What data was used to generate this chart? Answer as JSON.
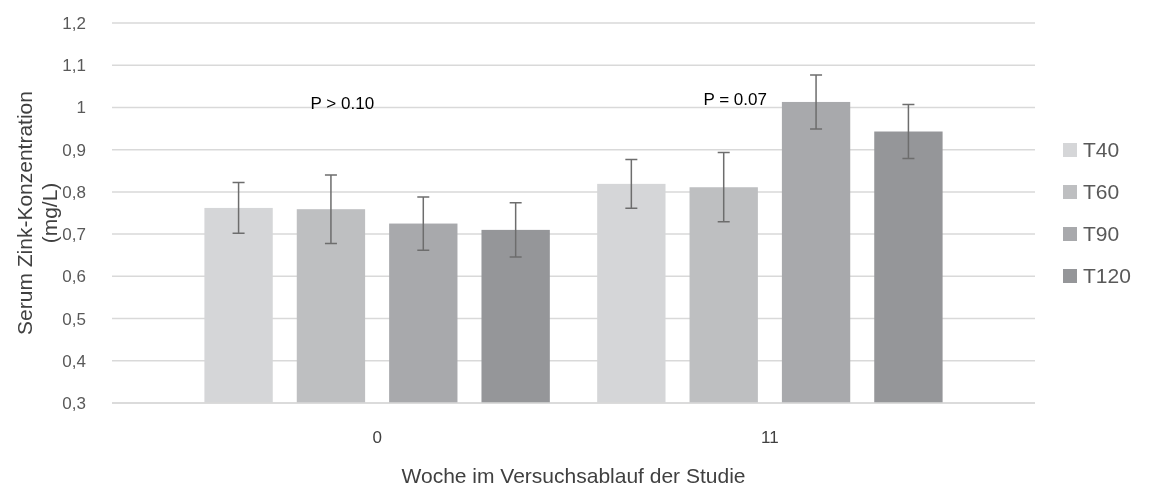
{
  "chart_data": {
    "type": "bar",
    "xlabel": "Woche im Versuchsablauf der Studie",
    "ylabel": "Serum Zink-Konzentration (mg/L)",
    "categories": [
      "0",
      "11"
    ],
    "series": [
      {
        "name": "T40",
        "color": "#d5d6d8",
        "values": [
          0.762,
          0.819
        ],
        "errors": [
          0.06,
          0.058
        ]
      },
      {
        "name": "T60",
        "color": "#bebfc1",
        "values": [
          0.759,
          0.811
        ],
        "errors": [
          0.081,
          0.082
        ]
      },
      {
        "name": "T90",
        "color": "#a8a9ac",
        "values": [
          0.725,
          1.013
        ],
        "errors": [
          0.063,
          0.064
        ]
      },
      {
        "name": "T120",
        "color": "#959699",
        "values": [
          0.71,
          0.943
        ],
        "errors": [
          0.064,
          0.064
        ]
      }
    ],
    "ylim": [
      0.3,
      1.2
    ],
    "yticks": [
      {
        "value": 0.3,
        "label": "0,3"
      },
      {
        "value": 0.4,
        "label": "0,4"
      },
      {
        "value": 0.5,
        "label": "0,5"
      },
      {
        "value": 0.6,
        "label": "0,6"
      },
      {
        "value": 0.7,
        "label": "0,7"
      },
      {
        "value": 0.8,
        "label": "0,8"
      },
      {
        "value": 0.9,
        "label": "0,9"
      },
      {
        "value": 1,
        "label": "1"
      },
      {
        "value": 1.1,
        "label": "1,1"
      },
      {
        "value": 1.2,
        "label": "1,2"
      }
    ],
    "grid": "y",
    "legend": "right",
    "annotations": [
      "P > 0.10",
      "P = 0.07"
    ]
  }
}
